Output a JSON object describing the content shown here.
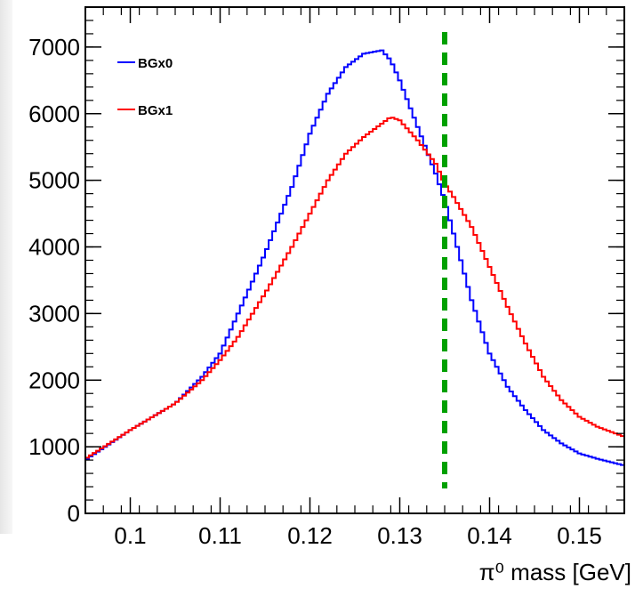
{
  "chart_data": {
    "type": "line",
    "title": "",
    "xlabel": "π⁰ mass [GeV]",
    "ylabel": "",
    "xlim": [
      0.095,
      0.155
    ],
    "ylim": [
      0,
      7600
    ],
    "x_ticks": [
      0.1,
      0.11,
      0.12,
      0.13,
      0.14,
      0.15
    ],
    "x_tick_labels": [
      "0.1",
      "0.11",
      "0.12",
      "0.13",
      "0.14",
      "0.15"
    ],
    "y_ticks": [
      0,
      1000,
      2000,
      3000,
      4000,
      5000,
      6000,
      7000
    ],
    "y_tick_labels": [
      "0",
      "1000",
      "2000",
      "3000",
      "4000",
      "5000",
      "6000",
      "7000"
    ],
    "legend_position": "top-left",
    "grid": false,
    "reference_line": {
      "x": 0.135,
      "color": "#00a000",
      "style": "dashed"
    },
    "x": [
      0.095,
      0.1,
      0.105,
      0.108,
      0.11,
      0.112,
      0.115,
      0.118,
      0.12,
      0.122,
      0.124,
      0.126,
      0.128,
      0.129,
      0.13,
      0.132,
      0.134,
      0.135,
      0.136,
      0.138,
      0.14,
      0.142,
      0.144,
      0.146,
      0.148,
      0.15,
      0.152,
      0.155
    ],
    "series": [
      {
        "name": "BGx0",
        "color": "#0000ff",
        "values": [
          800,
          1250,
          1650,
          2050,
          2400,
          3000,
          3900,
          4900,
          5700,
          6300,
          6700,
          6900,
          6950,
          6800,
          6500,
          5800,
          5100,
          4700,
          4200,
          3200,
          2400,
          1900,
          1550,
          1250,
          1050,
          900,
          820,
          720
        ]
      },
      {
        "name": "BGx1",
        "color": "#ff0000",
        "values": [
          820,
          1250,
          1650,
          2000,
          2300,
          2650,
          3300,
          4000,
          4500,
          5000,
          5400,
          5650,
          5850,
          5950,
          5900,
          5600,
          5250,
          4950,
          4750,
          4300,
          3700,
          3100,
          2550,
          2050,
          1700,
          1450,
          1300,
          1150
        ]
      }
    ]
  }
}
